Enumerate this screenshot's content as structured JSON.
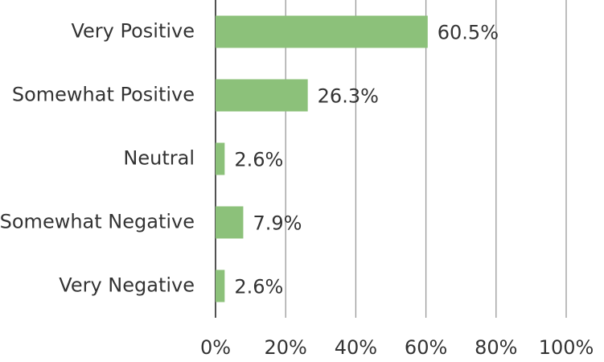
{
  "chart_data": {
    "type": "hbar",
    "categories": [
      "Very Positive",
      "Somewhat Positive",
      "Neutral",
      "Somewhat Negative",
      "Very Negative"
    ],
    "values": [
      60.5,
      26.3,
      2.6,
      7.9,
      2.6
    ],
    "value_labels": [
      "60.5%",
      "26.3%",
      "2.6%",
      "7.9%",
      "2.6%"
    ],
    "color": "#8cc17a",
    "xlim": [
      0,
      100
    ],
    "xticks": [
      {
        "value": 0,
        "label": "0%"
      },
      {
        "value": 20,
        "label": "20%"
      },
      {
        "value": 40,
        "label": "40%"
      },
      {
        "value": 60,
        "label": "60%"
      },
      {
        "value": 80,
        "label": "80%"
      },
      {
        "value": 100,
        "label": "100%"
      }
    ],
    "grid": true
  }
}
